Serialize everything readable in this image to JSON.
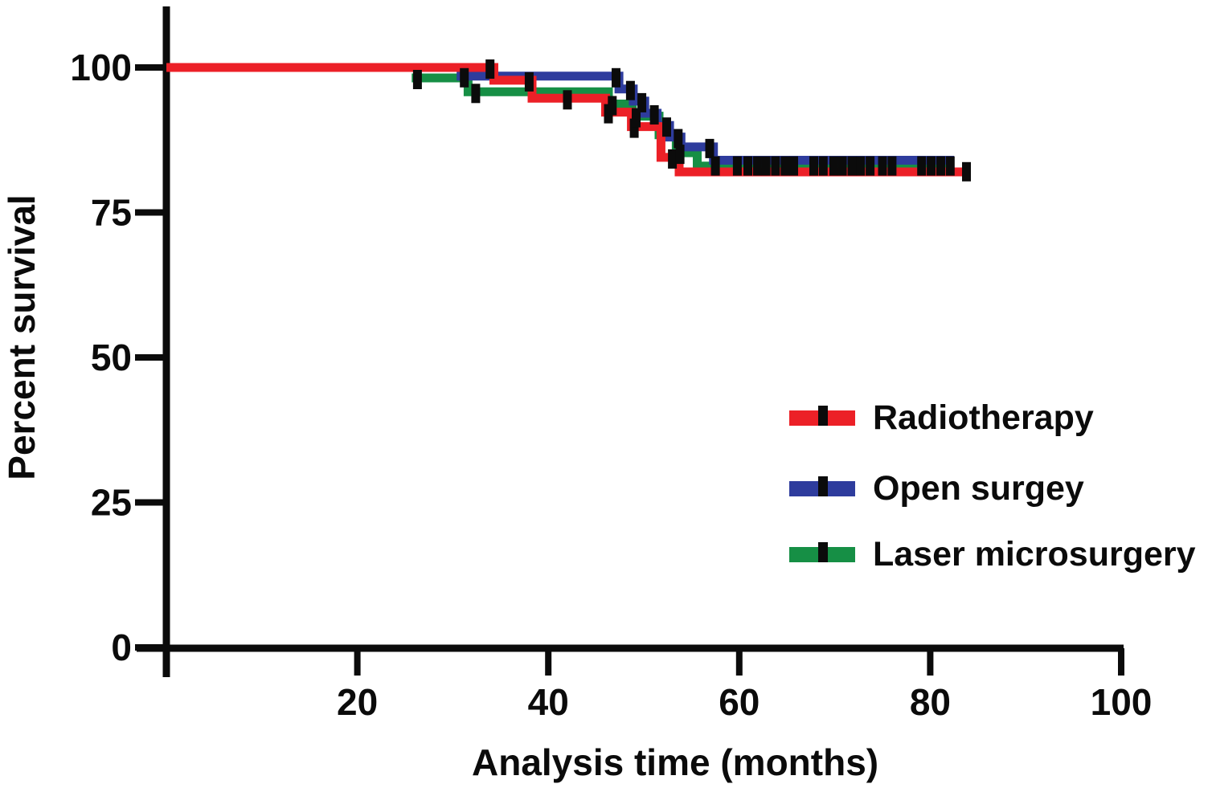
{
  "chart_data": {
    "type": "line",
    "subtype": "kaplan-meier-step-curve",
    "title": "",
    "xlabel": "Analysis time (months)",
    "ylabel": "Percent survival",
    "xlim": [
      0,
      100
    ],
    "ylim": [
      0,
      100
    ],
    "xticks": [
      20,
      40,
      60,
      80,
      100
    ],
    "yticks": [
      0,
      25,
      50,
      75,
      100
    ],
    "grid": false,
    "legend_position": "right-middle",
    "axis_color": "#0b0b0b",
    "censor_mark_color": "#0b0b0b",
    "series": [
      {
        "name": "Radiotherapy",
        "color": "#EC2027",
        "steps": [
          [
            0,
            100
          ],
          [
            34.3,
            100
          ],
          [
            34.3,
            97.8
          ],
          [
            38.3,
            97.8
          ],
          [
            38.3,
            94.7
          ],
          [
            46.0,
            94.7
          ],
          [
            46.0,
            92.3
          ],
          [
            48.7,
            92.3
          ],
          [
            48.7,
            89.8
          ],
          [
            51.8,
            89.8
          ],
          [
            51.8,
            84.5
          ],
          [
            53.7,
            84.5
          ],
          [
            53.7,
            82.0
          ],
          [
            84.1,
            82.0
          ]
        ],
        "censors": [
          [
            33.9,
            100
          ],
          [
            38.0,
            97.8
          ],
          [
            42.0,
            94.7
          ],
          [
            46.3,
            92.3
          ],
          [
            49.0,
            89.8
          ],
          [
            53.0,
            84.5
          ],
          [
            83.8,
            82.3
          ]
        ]
      },
      {
        "name": "Open surgey",
        "color": "#2E3C9D",
        "steps": [
          [
            30.4,
            98.5
          ],
          [
            47.4,
            98.5
          ],
          [
            47.4,
            96.3
          ],
          [
            48.9,
            96.3
          ],
          [
            48.9,
            94.2
          ],
          [
            50.1,
            94.2
          ],
          [
            50.1,
            92.1
          ],
          [
            51.4,
            92.1
          ],
          [
            51.4,
            90.0
          ],
          [
            52.7,
            90.0
          ],
          [
            52.7,
            88.0
          ],
          [
            53.9,
            88.0
          ],
          [
            53.9,
            86.3
          ],
          [
            57.3,
            86.3
          ],
          [
            57.3,
            84.0
          ],
          [
            82.5,
            84.0
          ]
        ],
        "censors": [
          [
            31.2,
            98.5
          ],
          [
            47.1,
            98.5
          ],
          [
            48.6,
            96.3
          ],
          [
            49.8,
            94.2
          ],
          [
            51.1,
            92.1
          ],
          [
            52.4,
            90.0
          ],
          [
            53.6,
            88.0
          ],
          [
            56.9,
            86.3
          ],
          [
            57.5,
            83.3
          ],
          [
            59.8,
            83.3
          ],
          [
            60.9,
            83.3
          ],
          [
            61.9,
            83.3
          ],
          [
            62.8,
            83.3
          ],
          [
            63.8,
            83.3
          ],
          [
            64.8,
            83.3
          ],
          [
            65.7,
            83.3
          ],
          [
            67.8,
            83.3
          ],
          [
            68.8,
            83.3
          ],
          [
            69.9,
            83.3
          ],
          [
            70.8,
            83.3
          ],
          [
            71.8,
            83.3
          ],
          [
            72.7,
            83.3
          ],
          [
            73.7,
            83.3
          ],
          [
            75.0,
            83.3
          ],
          [
            76.0,
            83.3
          ],
          [
            79.1,
            83.3
          ],
          [
            80.1,
            83.3
          ],
          [
            81.1,
            83.3
          ],
          [
            82.1,
            83.3
          ]
        ]
      },
      {
        "name": "Laser microsurgery",
        "color": "#168F45",
        "steps": [
          [
            25.7,
            98.2
          ],
          [
            31.6,
            98.2
          ],
          [
            31.6,
            95.8
          ],
          [
            46.3,
            95.8
          ],
          [
            46.3,
            93.7
          ],
          [
            48.8,
            93.7
          ],
          [
            48.8,
            91.6
          ],
          [
            51.6,
            91.6
          ],
          [
            51.6,
            88.4
          ],
          [
            53.4,
            88.4
          ],
          [
            53.4,
            85.3
          ],
          [
            55.6,
            85.3
          ],
          [
            55.6,
            83.0
          ],
          [
            82.0,
            83.0
          ]
        ],
        "censors": [
          [
            26.3,
            98.2
          ],
          [
            32.4,
            95.8
          ],
          [
            46.7,
            93.7
          ],
          [
            49.2,
            91.6
          ],
          [
            53.8,
            85.3
          ]
        ]
      }
    ]
  },
  "legend": {
    "items": [
      {
        "label": "Radiotherapy"
      },
      {
        "label": "Open surgey"
      },
      {
        "label": "Laser microsurgery"
      }
    ]
  }
}
